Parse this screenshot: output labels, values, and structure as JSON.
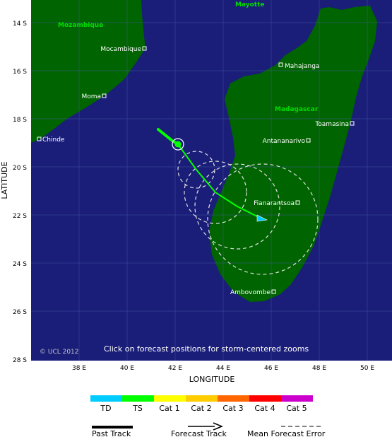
{
  "map": {
    "xlabel": "LONGITUDE",
    "ylabel": "LATITUDE",
    "lon_ticks": [
      "38 E",
      "40 E",
      "42 E",
      "44 E",
      "46 E",
      "48 E",
      "50 E"
    ],
    "lat_ticks": [
      "14 S",
      "16 S",
      "18 S",
      "20 S",
      "22 S",
      "24 S",
      "26 S",
      "28 S"
    ],
    "copyright": "© UCL 2012",
    "instruction": "Click on forecast positions for storm-centered zooms",
    "colors": {
      "ocean": "#1a1e78",
      "land": "#006400",
      "grid": "#5a6ab8",
      "track": "#00ff00",
      "region_label": "#00dd00"
    },
    "regions": [
      {
        "name": "Mozambique"
      },
      {
        "name": "Mayotte"
      },
      {
        "name": "Madagascar"
      }
    ],
    "cities": [
      {
        "name": "Mocambique"
      },
      {
        "name": "Moma"
      },
      {
        "name": "Chinde"
      },
      {
        "name": "Mahajanga"
      },
      {
        "name": "Toamasina"
      },
      {
        "name": "Antananarivo"
      },
      {
        "name": "Fianarantsoa"
      },
      {
        "name": "Ambovombe"
      }
    ]
  },
  "legend": {
    "categories": [
      {
        "label": "TD",
        "color": "#00ccff"
      },
      {
        "label": "TS",
        "color": "#00ff00"
      },
      {
        "label": "Cat 1",
        "color": "#ffff00"
      },
      {
        "label": "Cat 2",
        "color": "#ffcc00"
      },
      {
        "label": "Cat 3",
        "color": "#ff6600"
      },
      {
        "label": "Cat 4",
        "color": "#ff0000"
      },
      {
        "label": "Cat 5",
        "color": "#cc00cc"
      }
    ],
    "past_track": "Past Track",
    "forecast_track": "Forecast Track",
    "mean_forecast_error": "Mean Forecast Error"
  }
}
